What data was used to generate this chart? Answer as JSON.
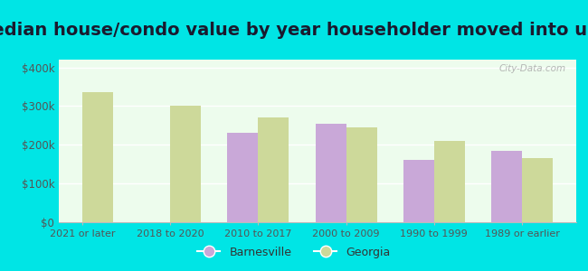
{
  "title": "Median house/condo value by year householder moved into unit",
  "categories": [
    "2021 or later",
    "2018 to 2020",
    "2010 to 2017",
    "2000 to 2009",
    "1990 to 1999",
    "1989 or earlier"
  ],
  "barnesville": [
    null,
    null,
    230000,
    255000,
    160000,
    185000
  ],
  "georgia": [
    335000,
    300000,
    270000,
    245000,
    210000,
    165000
  ],
  "barnesville_color": "#c9a8d8",
  "georgia_color": "#cdd99a",
  "plot_bg_color": "#edfced",
  "outer_background": "#00e5e5",
  "ylim": [
    0,
    420000
  ],
  "yticks": [
    0,
    100000,
    200000,
    300000,
    400000
  ],
  "ytick_labels": [
    "$0",
    "$100k",
    "$200k",
    "$300k",
    "$400k"
  ],
  "bar_width": 0.35,
  "title_fontsize": 14,
  "title_color": "#1a1a2e",
  "legend_labels": [
    "Barnesville",
    "Georgia"
  ],
  "watermark": "City-Data.com"
}
